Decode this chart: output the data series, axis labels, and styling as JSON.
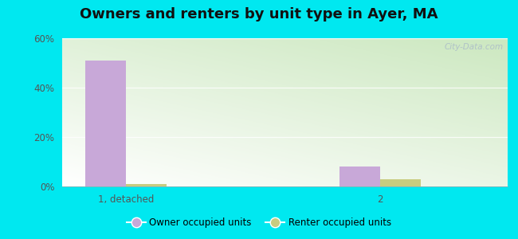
{
  "title": "Owners and renters by unit type in Ayer, MA",
  "categories": [
    "1, detached",
    "2"
  ],
  "owner_values": [
    51,
    8
  ],
  "renter_values": [
    1,
    3
  ],
  "owner_color": "#c8a8d8",
  "renter_color": "#c8cc80",
  "ylim": [
    0,
    60
  ],
  "yticks": [
    0,
    20,
    40,
    60
  ],
  "ytick_labels": [
    "0%",
    "20%",
    "40%",
    "60%"
  ],
  "background_outer": "#00e8f0",
  "legend_owner": "Owner occupied units",
  "legend_renter": "Renter occupied units",
  "title_fontsize": 13,
  "bar_width": 0.32,
  "x_positions": [
    0.5,
    2.5
  ],
  "xlim": [
    0,
    3.5
  ]
}
